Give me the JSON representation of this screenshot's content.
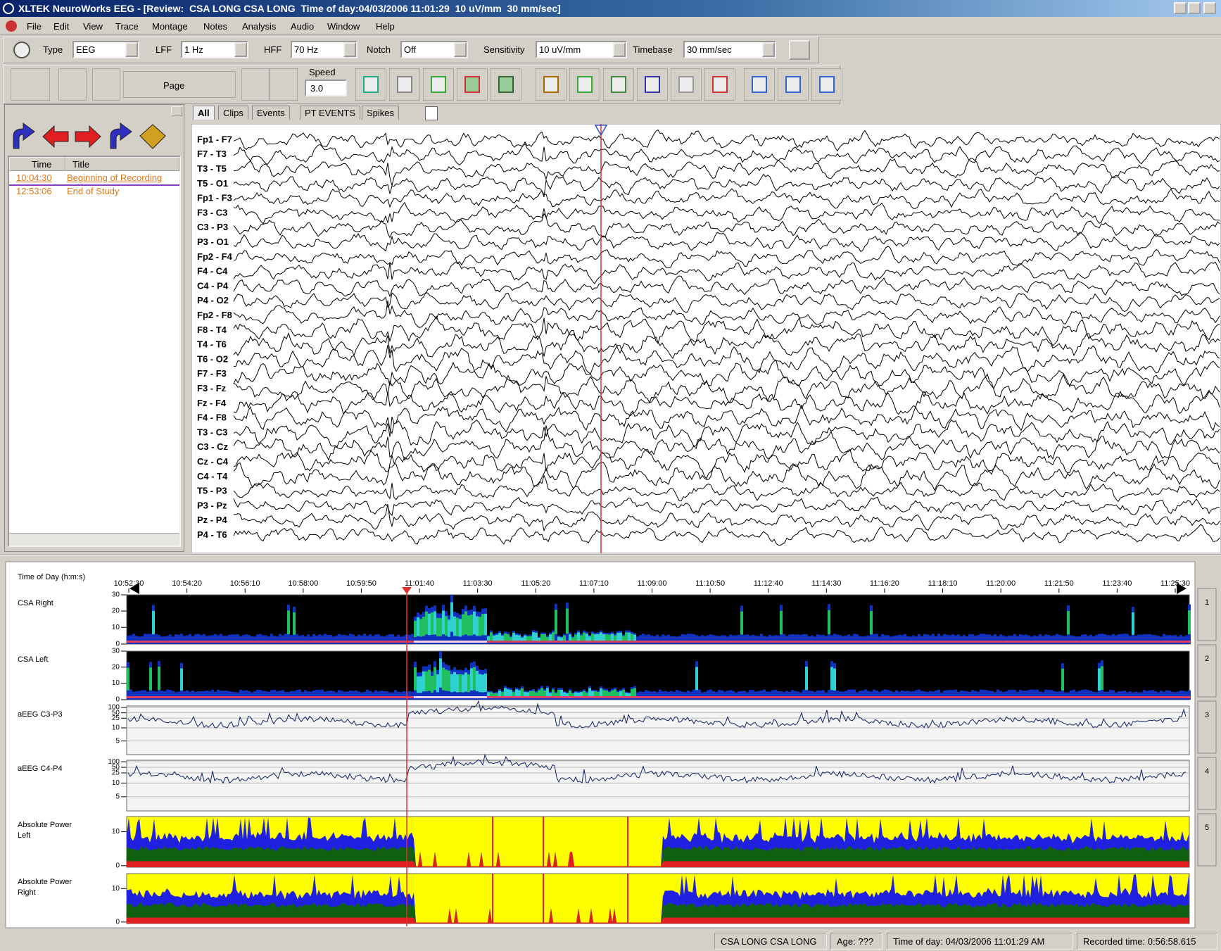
{
  "window": {
    "title": "XLTEK NeuroWorks EEG - [Review:  CSA LONG CSA LONG  Time of day:04/03/2006 11:01:29  10 uV/mm  30 mm/sec]"
  },
  "menu": [
    "File",
    "Edit",
    "View",
    "Trace",
    "Montage",
    "Notes",
    "Analysis",
    "Audio",
    "Window",
    "Help"
  ],
  "settings": [
    {
      "label": "Type",
      "value": "EEG"
    },
    {
      "label": "LFF",
      "value": "1 Hz"
    },
    {
      "label": "HFF",
      "value": "70 Hz"
    },
    {
      "label": "Notch",
      "value": "Off"
    },
    {
      "label": "Sensitivity",
      "value": "10 uV/mm"
    },
    {
      "label": "Timebase",
      "value": "30 mm/sec"
    }
  ],
  "playback": {
    "page": "Page",
    "speed_label": "Speed",
    "speed": "3.0"
  },
  "tabs": [
    "All",
    "Clips",
    "Events",
    "PT EVENTS",
    "Spikes"
  ],
  "events": {
    "columns": [
      "Time",
      "Title"
    ],
    "rows": [
      [
        "10:04:30",
        "Beginning of Recording"
      ],
      [
        "12:53:06",
        "End of Study"
      ]
    ]
  },
  "channels": [
    "Fp1 - F7",
    "F7 - T3",
    "T3 - T5",
    "T5 - O1",
    "Fp1 - F3",
    "F3 - C3",
    "C3 - P3",
    "P3 - O1",
    "Fp2 - F4",
    "F4 - C4",
    "C4 - P4",
    "P4 - O2",
    "Fp2 - F8",
    "F8 - T4",
    "T4 - T6",
    "T6 - O2",
    "F7 - F3",
    "F3 - Fz",
    "Fz - F4",
    "F4 - F8",
    "T3 - C3",
    "C3 - Cz",
    "Cz - C4",
    "C4 - T4",
    "T5 - P3",
    "P3 - Pz",
    "Pz - P4",
    "P4 - T6"
  ],
  "trends": {
    "axis_title": "Time of Day (h:m:s)",
    "times": [
      "10:52:30",
      "10:54:20",
      "10:56:10",
      "10:58:00",
      "10:59:50",
      "11:01:40",
      "11:03:30",
      "11:05:20",
      "11:07:10",
      "11:09:00",
      "11:10:50",
      "11:12:40",
      "11:14:30",
      "11:16:20",
      "11:18:10",
      "11:20:00",
      "11:21:50",
      "11:23:40",
      "11:25:30"
    ],
    "panels": [
      {
        "label": "CSA Right",
        "ticks": [
          "30",
          "20",
          "10",
          "0"
        ]
      },
      {
        "label": "CSA Left",
        "ticks": [
          "30",
          "20",
          "10",
          "0"
        ]
      },
      {
        "label": "aEEG C3-P3",
        "ticks": [
          "100",
          "50",
          "25",
          "10",
          "5"
        ]
      },
      {
        "label": "aEEG C4-P4",
        "ticks": [
          "100",
          "50",
          "25",
          "10",
          "5"
        ]
      },
      {
        "label": "Absolute Power Left",
        "ticks": [
          "10",
          "0"
        ]
      },
      {
        "label": "Absolute Power Right",
        "ticks": [
          "10",
          "0"
        ]
      }
    ],
    "side_tabs": [
      "1",
      "2",
      "3",
      "4",
      "5"
    ]
  },
  "status": [
    "CSA LONG CSA LONG",
    "Age: ???",
    "Time of day: 04/03/2006 11:01:29 AM",
    "Recorded time: 0:56:58.615"
  ]
}
